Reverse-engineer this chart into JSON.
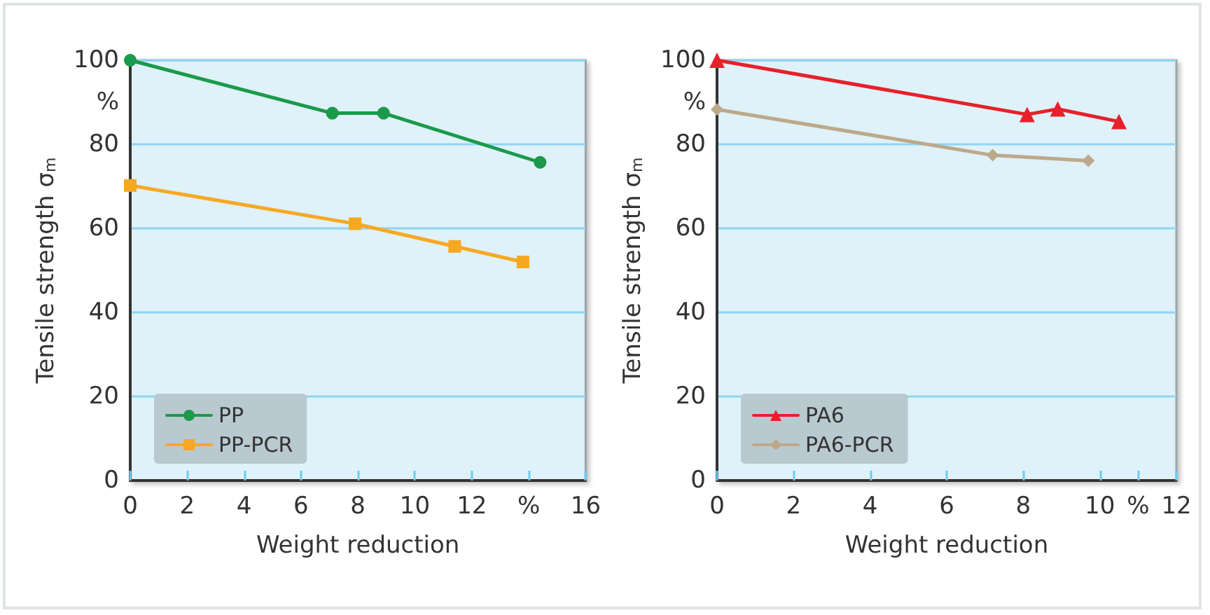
{
  "chart_data": [
    {
      "type": "line",
      "xlabel": "Weight reduction",
      "ylabel": "Tensile strength σ$_{m}$",
      "xlim": [
        0,
        16
      ],
      "xticks": [
        0,
        2,
        4,
        6,
        8,
        10,
        12,
        {
          "value": 14,
          "label": "%"
        },
        16
      ],
      "ylim": [
        0,
        100
      ],
      "yticks": [
        0,
        20,
        40,
        60,
        80,
        {
          "value": 90,
          "label": "%"
        },
        100
      ],
      "grid": "y",
      "legend": "bottom left",
      "line_style": "solid",
      "series": [
        {
          "name": "PP",
          "color": "#1a9a4a",
          "marker": "circle",
          "x": [
            0,
            7.1,
            8.9,
            14.4
          ],
          "values": [
            100,
            87.4,
            87.4,
            75.7
          ]
        },
        {
          "name": "PP-PCR",
          "color": "#f7a823",
          "marker": "square",
          "x": [
            0,
            7.9,
            11.4,
            13.8
          ],
          "values": [
            70.2,
            61.1,
            55.7,
            52.0
          ]
        }
      ]
    },
    {
      "type": "line",
      "xlabel": "Weight reduction",
      "ylabel": "Tensile strength σ$_{m}$",
      "xlim": [
        0,
        12
      ],
      "xticks": [
        0,
        2,
        4,
        6,
        8,
        10,
        {
          "value": 11,
          "label": "%"
        },
        12
      ],
      "ylim": [
        0,
        100
      ],
      "yticks": [
        0,
        20,
        40,
        60,
        80,
        {
          "value": 90,
          "label": "%"
        },
        100
      ],
      "grid": "y",
      "legend": "bottom left",
      "line_style": "solid",
      "series": [
        {
          "name": "PA6",
          "color": "#e8202a",
          "marker": "triangle",
          "x": [
            0,
            8.1,
            8.9,
            10.5
          ],
          "values": [
            100,
            87.1,
            88.4,
            85.4
          ]
        },
        {
          "name": "PA6-PCR",
          "color": "#bca98a",
          "marker": "diamond",
          "x": [
            0,
            7.2,
            9.7
          ],
          "values": [
            88.3,
            77.4,
            76.1
          ]
        }
      ]
    }
  ]
}
